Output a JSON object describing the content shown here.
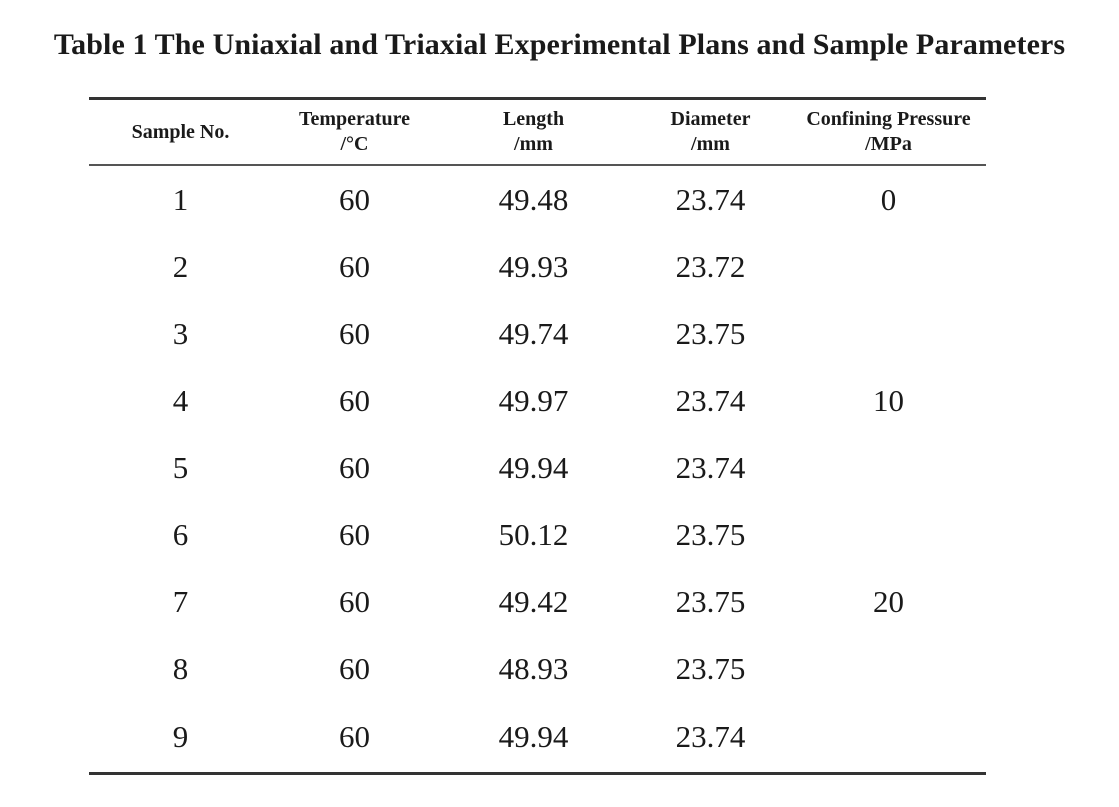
{
  "caption": "Table 1 The Uniaxial and Triaxial Experimental Plans and Sample Parameters",
  "table": {
    "headers": [
      {
        "line1": "Sample No.",
        "line2": ""
      },
      {
        "line1": "Temperature",
        "line2": "/°C"
      },
      {
        "line1": "Length",
        "line2": "/mm"
      },
      {
        "line1": "Diameter",
        "line2": "/mm"
      },
      {
        "line1": "Confining Pressure",
        "line2": "/MPa"
      }
    ],
    "rows": [
      [
        "1",
        "60",
        "49.48",
        "23.74",
        "0"
      ],
      [
        "2",
        "60",
        "49.93",
        "23.72",
        ""
      ],
      [
        "3",
        "60",
        "49.74",
        "23.75",
        ""
      ],
      [
        "4",
        "60",
        "49.97",
        "23.74",
        "10"
      ],
      [
        "5",
        "60",
        "49.94",
        "23.74",
        ""
      ],
      [
        "6",
        "60",
        "50.12",
        "23.75",
        ""
      ],
      [
        "7",
        "60",
        "49.42",
        "23.75",
        "20"
      ],
      [
        "8",
        "60",
        "48.93",
        "23.75",
        ""
      ],
      [
        "9",
        "60",
        "49.94",
        "23.74",
        ""
      ]
    ]
  }
}
